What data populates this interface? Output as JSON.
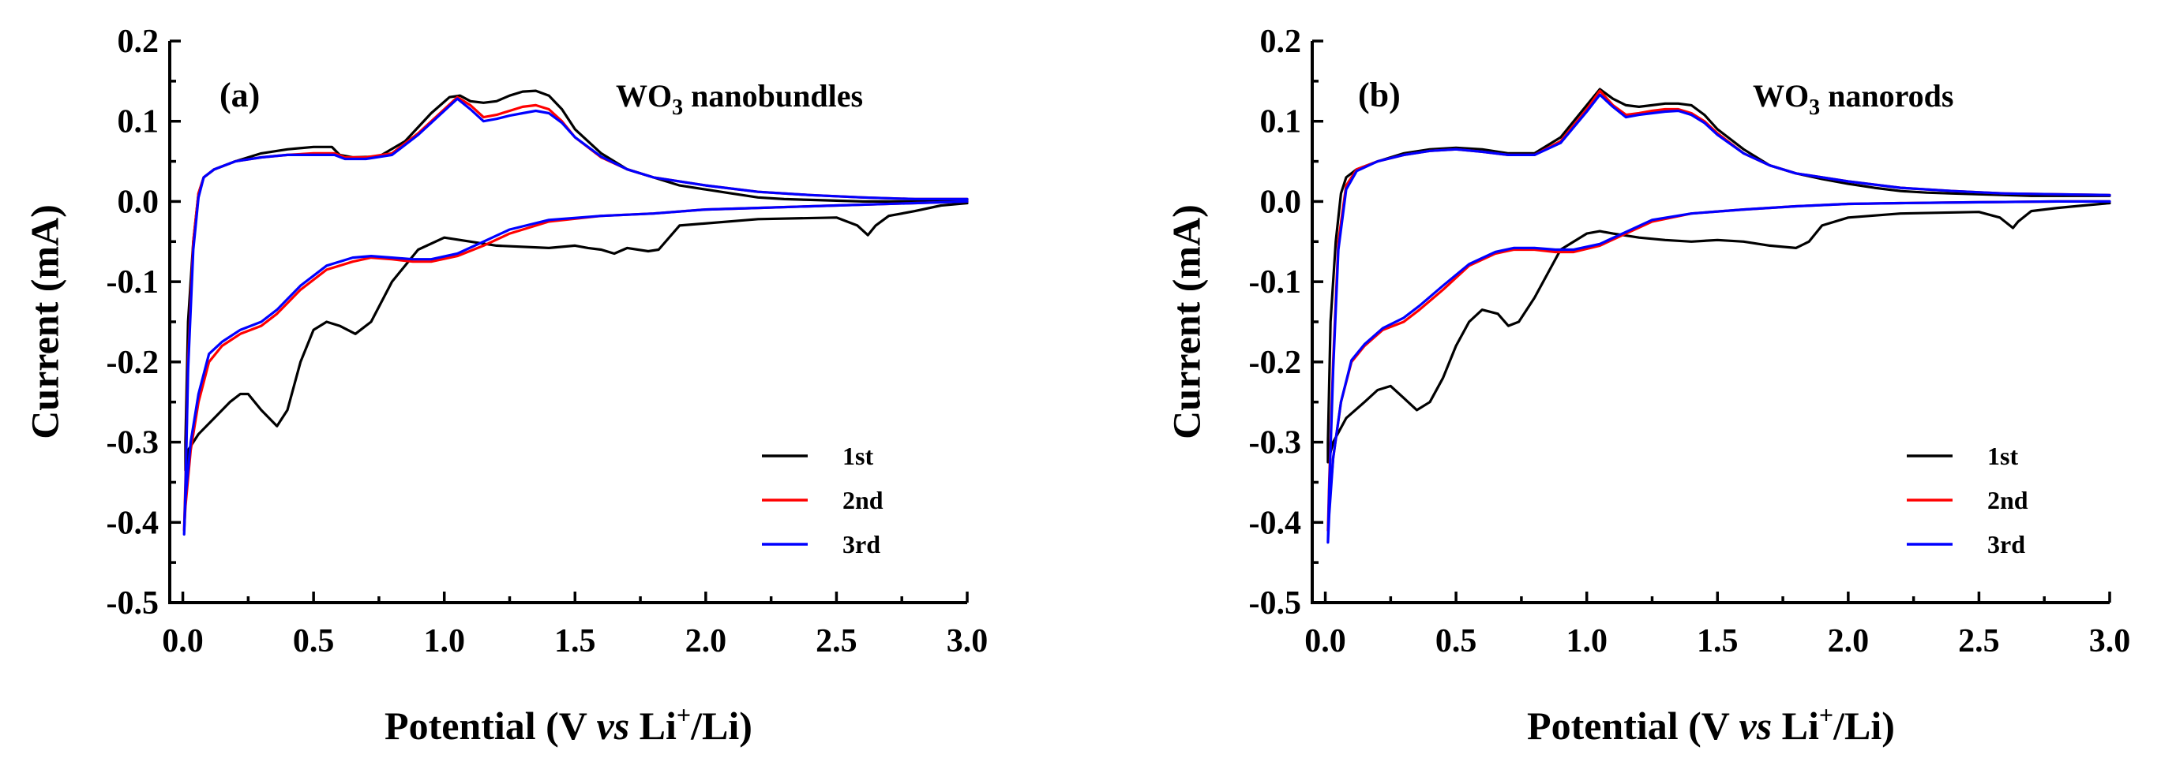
{
  "chart_data": [
    {
      "type": "line",
      "panel_label": "(a)",
      "sample": {
        "prefix": "WO",
        "subscript": "3",
        "suffix": " nanobundles"
      },
      "xlabel": {
        "prefix": "Potential (V ",
        "italic": "vs",
        "middle": " Li",
        "superscript": "+",
        "suffix": "/Li)"
      },
      "ylabel": "Current (mA)",
      "xlim": [
        -0.05,
        3.0
      ],
      "ylim": [
        -0.5,
        0.2
      ],
      "xticks": [
        "0.0",
        "0.5",
        "1.0",
        "1.5",
        "2.0",
        "2.5",
        "3.0"
      ],
      "yticks": [
        "0.2",
        "0.1",
        "0.0",
        "-0.1",
        "-0.2",
        "-0.3",
        "-0.4",
        "-0.5"
      ],
      "legend_position": "bottom-right",
      "series": [
        {
          "name": "1st",
          "color": "#000000",
          "x": [
            3.0,
            2.9,
            2.8,
            2.7,
            2.65,
            2.62,
            2.58,
            2.5,
            2.2,
            1.9,
            1.82,
            1.78,
            1.7,
            1.65,
            1.6,
            1.55,
            1.5,
            1.4,
            1.2,
            1.1,
            1.0,
            0.9,
            0.8,
            0.72,
            0.66,
            0.6,
            0.55,
            0.5,
            0.45,
            0.4,
            0.36,
            0.3,
            0.25,
            0.22,
            0.18,
            0.12,
            0.06,
            0.02,
            0.01,
            0.01,
            0.02,
            0.04,
            0.06,
            0.08,
            0.12,
            0.2,
            0.3,
            0.4,
            0.5,
            0.57,
            0.6,
            0.65,
            0.75,
            0.85,
            0.95,
            1.02,
            1.06,
            1.1,
            1.15,
            1.2,
            1.25,
            1.3,
            1.35,
            1.4,
            1.45,
            1.5,
            1.6,
            1.7,
            1.8,
            1.9,
            2.0,
            2.1,
            2.2,
            2.3,
            2.4,
            2.5,
            2.6,
            2.7,
            2.8,
            2.9,
            3.0
          ],
          "y": [
            -0.002,
            -0.005,
            -0.012,
            -0.018,
            -0.03,
            -0.042,
            -0.03,
            -0.02,
            -0.022,
            -0.03,
            -0.06,
            -0.062,
            -0.058,
            -0.065,
            -0.06,
            -0.058,
            -0.055,
            -0.058,
            -0.055,
            -0.05,
            -0.045,
            -0.06,
            -0.1,
            -0.15,
            -0.165,
            -0.155,
            -0.15,
            -0.16,
            -0.2,
            -0.26,
            -0.28,
            -0.26,
            -0.24,
            -0.24,
            -0.25,
            -0.27,
            -0.29,
            -0.31,
            -0.335,
            -0.3,
            -0.15,
            -0.05,
            0.01,
            0.03,
            0.04,
            0.05,
            0.06,
            0.065,
            0.068,
            0.068,
            0.058,
            0.055,
            0.056,
            0.075,
            0.11,
            0.13,
            0.132,
            0.125,
            0.123,
            0.125,
            0.132,
            0.137,
            0.138,
            0.132,
            0.115,
            0.09,
            0.06,
            0.04,
            0.03,
            0.02,
            0.015,
            0.01,
            0.005,
            0.003,
            0.002,
            0.001,
            0.0,
            0.0,
            0.0,
            0.001,
            0.002
          ]
        },
        {
          "name": "2nd",
          "color": "#ff0000",
          "x": [
            3.0,
            2.8,
            2.5,
            2.2,
            2.0,
            1.8,
            1.6,
            1.4,
            1.25,
            1.15,
            1.05,
            0.95,
            0.88,
            0.8,
            0.72,
            0.65,
            0.55,
            0.45,
            0.36,
            0.3,
            0.22,
            0.15,
            0.1,
            0.06,
            0.03,
            0.01,
            0.005,
            0.01,
            0.02,
            0.04,
            0.06,
            0.08,
            0.12,
            0.2,
            0.3,
            0.4,
            0.5,
            0.58,
            0.62,
            0.7,
            0.8,
            0.9,
            1.0,
            1.05,
            1.1,
            1.15,
            1.2,
            1.25,
            1.3,
            1.35,
            1.4,
            1.45,
            1.5,
            1.6,
            1.7,
            1.8,
            2.0,
            2.2,
            2.4,
            2.6,
            2.8,
            3.0
          ],
          "y": [
            0.0,
            -0.002,
            -0.005,
            -0.008,
            -0.01,
            -0.015,
            -0.018,
            -0.025,
            -0.04,
            -0.055,
            -0.068,
            -0.075,
            -0.075,
            -0.072,
            -0.07,
            -0.075,
            -0.085,
            -0.11,
            -0.14,
            -0.155,
            -0.165,
            -0.18,
            -0.2,
            -0.25,
            -0.31,
            -0.38,
            -0.41,
            -0.35,
            -0.2,
            -0.05,
            0.01,
            0.03,
            0.04,
            0.05,
            0.055,
            0.058,
            0.06,
            0.06,
            0.055,
            0.055,
            0.06,
            0.085,
            0.115,
            0.13,
            0.12,
            0.105,
            0.108,
            0.113,
            0.118,
            0.12,
            0.115,
            0.1,
            0.08,
            0.055,
            0.04,
            0.03,
            0.02,
            0.012,
            0.008,
            0.005,
            0.003,
            0.003
          ]
        },
        {
          "name": "3rd",
          "color": "#0000ff",
          "x": [
            3.0,
            2.8,
            2.5,
            2.2,
            2.0,
            1.8,
            1.6,
            1.4,
            1.25,
            1.15,
            1.05,
            0.95,
            0.88,
            0.8,
            0.72,
            0.65,
            0.55,
            0.45,
            0.36,
            0.3,
            0.22,
            0.15,
            0.1,
            0.06,
            0.03,
            0.01,
            0.005,
            0.01,
            0.02,
            0.04,
            0.06,
            0.08,
            0.12,
            0.2,
            0.3,
            0.4,
            0.5,
            0.58,
            0.62,
            0.7,
            0.8,
            0.9,
            1.0,
            1.05,
            1.1,
            1.15,
            1.2,
            1.25,
            1.3,
            1.35,
            1.4,
            1.45,
            1.5,
            1.6,
            1.7,
            1.8,
            2.0,
            2.2,
            2.4,
            2.6,
            2.8,
            3.0
          ],
          "y": [
            0.0,
            -0.002,
            -0.005,
            -0.008,
            -0.01,
            -0.015,
            -0.018,
            -0.023,
            -0.035,
            -0.05,
            -0.065,
            -0.072,
            -0.072,
            -0.07,
            -0.068,
            -0.07,
            -0.08,
            -0.105,
            -0.135,
            -0.15,
            -0.16,
            -0.175,
            -0.19,
            -0.24,
            -0.3,
            -0.37,
            -0.415,
            -0.36,
            -0.21,
            -0.06,
            0.005,
            0.03,
            0.04,
            0.05,
            0.055,
            0.058,
            0.058,
            0.058,
            0.053,
            0.053,
            0.058,
            0.083,
            0.113,
            0.128,
            0.115,
            0.1,
            0.103,
            0.107,
            0.11,
            0.113,
            0.11,
            0.098,
            0.08,
            0.056,
            0.04,
            0.03,
            0.02,
            0.012,
            0.008,
            0.005,
            0.003,
            0.003
          ]
        }
      ]
    },
    {
      "type": "line",
      "panel_label": "(b)",
      "sample": {
        "prefix": "WO",
        "subscript": "3",
        "suffix": " nanorods"
      },
      "xlabel": {
        "prefix": "Potential (V ",
        "italic": "vs",
        "middle": " Li",
        "superscript": "+",
        "suffix": "/Li)"
      },
      "ylabel": "Current (mA)",
      "xlim": [
        -0.05,
        3.0
      ],
      "ylim": [
        -0.5,
        0.2
      ],
      "xticks": [
        "0.0",
        "0.5",
        "1.0",
        "1.5",
        "2.0",
        "2.5",
        "3.0"
      ],
      "yticks": [
        "0.2",
        "0.1",
        "0.0",
        "-0.1",
        "-0.2",
        "-0.3",
        "-0.4",
        "-0.5"
      ],
      "legend_position": "bottom-right",
      "series": [
        {
          "name": "1st",
          "color": "#000000",
          "x": [
            3.0,
            2.9,
            2.8,
            2.7,
            2.65,
            2.63,
            2.58,
            2.5,
            2.2,
            2.0,
            1.9,
            1.85,
            1.8,
            1.7,
            1.6,
            1.5,
            1.4,
            1.3,
            1.2,
            1.1,
            1.05,
            1.0,
            0.9,
            0.8,
            0.74,
            0.7,
            0.66,
            0.6,
            0.55,
            0.5,
            0.45,
            0.4,
            0.35,
            0.3,
            0.25,
            0.2,
            0.15,
            0.08,
            0.03,
            0.01,
            0.01,
            0.02,
            0.04,
            0.06,
            0.08,
            0.12,
            0.2,
            0.3,
            0.4,
            0.5,
            0.6,
            0.7,
            0.8,
            0.9,
            1.0,
            1.05,
            1.1,
            1.15,
            1.2,
            1.25,
            1.3,
            1.35,
            1.4,
            1.45,
            1.5,
            1.6,
            1.7,
            1.8,
            1.9,
            2.0,
            2.1,
            2.2,
            2.3,
            2.4,
            2.5,
            2.6,
            2.7,
            2.8,
            2.9,
            3.0
          ],
          "y": [
            -0.002,
            -0.005,
            -0.008,
            -0.012,
            -0.025,
            -0.033,
            -0.02,
            -0.013,
            -0.015,
            -0.02,
            -0.03,
            -0.05,
            -0.058,
            -0.055,
            -0.05,
            -0.048,
            -0.05,
            -0.048,
            -0.045,
            -0.04,
            -0.037,
            -0.04,
            -0.06,
            -0.12,
            -0.15,
            -0.155,
            -0.14,
            -0.135,
            -0.15,
            -0.18,
            -0.22,
            -0.25,
            -0.26,
            -0.245,
            -0.23,
            -0.235,
            -0.25,
            -0.27,
            -0.3,
            -0.325,
            -0.3,
            -0.15,
            -0.05,
            0.01,
            0.03,
            0.04,
            0.05,
            0.06,
            0.065,
            0.067,
            0.065,
            0.06,
            0.06,
            0.08,
            0.12,
            0.14,
            0.128,
            0.12,
            0.118,
            0.12,
            0.122,
            0.122,
            0.12,
            0.108,
            0.09,
            0.065,
            0.045,
            0.035,
            0.028,
            0.022,
            0.017,
            0.013,
            0.011,
            0.01,
            0.009,
            0.008,
            0.007,
            0.007,
            0.007,
            0.007
          ]
        },
        {
          "name": "2nd",
          "color": "#ff0000",
          "x": [
            3.0,
            2.8,
            2.5,
            2.2,
            2.0,
            1.8,
            1.6,
            1.4,
            1.25,
            1.15,
            1.05,
            0.95,
            0.88,
            0.8,
            0.72,
            0.65,
            0.55,
            0.45,
            0.36,
            0.3,
            0.22,
            0.15,
            0.1,
            0.06,
            0.03,
            0.015,
            0.01,
            0.015,
            0.03,
            0.05,
            0.08,
            0.12,
            0.2,
            0.3,
            0.4,
            0.5,
            0.6,
            0.7,
            0.8,
            0.9,
            1.0,
            1.05,
            1.1,
            1.15,
            1.2,
            1.25,
            1.3,
            1.35,
            1.4,
            1.45,
            1.5,
            1.6,
            1.7,
            1.8,
            2.0,
            2.2,
            2.4,
            2.6,
            2.8,
            3.0
          ],
          "y": [
            0.0,
            0.0,
            -0.001,
            -0.002,
            -0.003,
            -0.006,
            -0.01,
            -0.015,
            -0.025,
            -0.04,
            -0.055,
            -0.063,
            -0.063,
            -0.06,
            -0.06,
            -0.065,
            -0.08,
            -0.11,
            -0.135,
            -0.15,
            -0.16,
            -0.18,
            -0.2,
            -0.25,
            -0.32,
            -0.38,
            -0.41,
            -0.35,
            -0.2,
            -0.05,
            0.02,
            0.04,
            0.05,
            0.058,
            0.063,
            0.065,
            0.062,
            0.058,
            0.058,
            0.075,
            0.115,
            0.138,
            0.12,
            0.108,
            0.11,
            0.113,
            0.115,
            0.115,
            0.11,
            0.1,
            0.085,
            0.06,
            0.045,
            0.035,
            0.025,
            0.017,
            0.013,
            0.01,
            0.009,
            0.008
          ]
        },
        {
          "name": "3rd",
          "color": "#0000ff",
          "x": [
            3.0,
            2.8,
            2.5,
            2.2,
            2.0,
            1.8,
            1.6,
            1.4,
            1.25,
            1.15,
            1.05,
            0.95,
            0.88,
            0.8,
            0.72,
            0.65,
            0.55,
            0.45,
            0.36,
            0.3,
            0.22,
            0.15,
            0.1,
            0.06,
            0.03,
            0.015,
            0.01,
            0.015,
            0.03,
            0.05,
            0.08,
            0.12,
            0.2,
            0.3,
            0.4,
            0.5,
            0.6,
            0.7,
            0.8,
            0.9,
            1.0,
            1.05,
            1.1,
            1.15,
            1.2,
            1.25,
            1.3,
            1.35,
            1.4,
            1.45,
            1.5,
            1.6,
            1.7,
            1.8,
            2.0,
            2.2,
            2.4,
            2.6,
            2.8,
            3.0
          ],
          "y": [
            0.0,
            0.0,
            -0.001,
            -0.002,
            -0.003,
            -0.006,
            -0.01,
            -0.015,
            -0.023,
            -0.038,
            -0.053,
            -0.06,
            -0.06,
            -0.058,
            -0.058,
            -0.063,
            -0.078,
            -0.105,
            -0.13,
            -0.145,
            -0.158,
            -0.178,
            -0.198,
            -0.25,
            -0.32,
            -0.39,
            -0.425,
            -0.36,
            -0.21,
            -0.06,
            0.015,
            0.038,
            0.05,
            0.058,
            0.063,
            0.065,
            0.062,
            0.058,
            0.058,
            0.073,
            0.112,
            0.133,
            0.118,
            0.105,
            0.108,
            0.11,
            0.112,
            0.113,
            0.108,
            0.098,
            0.083,
            0.06,
            0.045,
            0.035,
            0.025,
            0.017,
            0.013,
            0.01,
            0.009,
            0.008
          ]
        }
      ]
    }
  ]
}
